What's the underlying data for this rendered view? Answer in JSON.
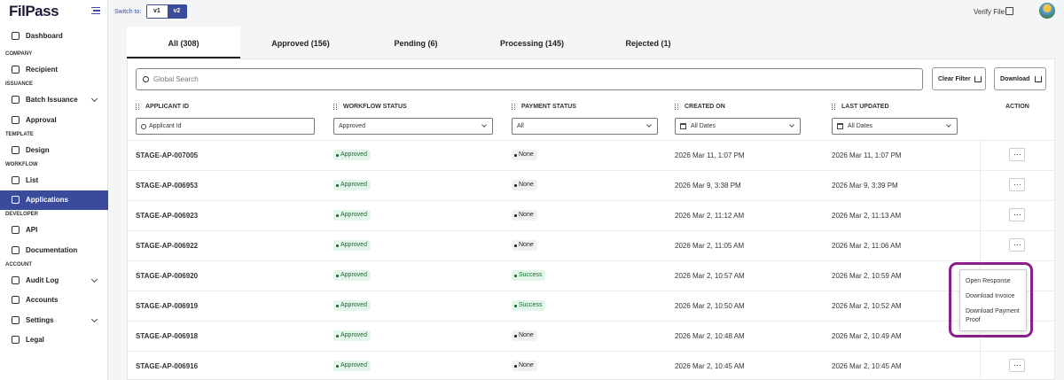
{
  "brand": "FilPass",
  "sidebar": {
    "top": "Dashboard",
    "sections": [
      {
        "title": "COMPANY",
        "items": [
          "Recipient"
        ]
      },
      {
        "title": "ISSUANCE",
        "items": [
          "Batch Issuance",
          "Approval"
        ]
      },
      {
        "title": "TEMPLATE",
        "items": [
          "Design"
        ]
      },
      {
        "title": "WORKFLOW",
        "items": [
          "List",
          "Applications"
        ]
      },
      {
        "title": "DEVELOPER",
        "items": [
          "API",
          "Documentation"
        ]
      },
      {
        "title": "ACCOUNT",
        "items": [
          "Audit Log",
          "Accounts",
          "Settings",
          "Legal"
        ]
      }
    ]
  },
  "topbar": {
    "switch_label": "Switch to:",
    "versions": [
      "v1",
      "v2"
    ],
    "verify": "Verify File"
  },
  "tabs": [
    "All (308)",
    "Approved (156)",
    "Pending (6)",
    "Processing (145)",
    "Rejected (1)"
  ],
  "toolbar": {
    "search": "Global Search",
    "clear": "Clear Filter",
    "download": "Download"
  },
  "table": {
    "columns": [
      "APPLICANT ID",
      "WORKFLOW STATUS",
      "PAYMENT STATUS",
      "CREATED ON",
      "LAST UPDATED",
      "ACTION"
    ],
    "filters": [
      "Applicant Id",
      "Approved",
      "All",
      "All Dates",
      "All Dates"
    ],
    "rows": [
      {
        "id": "STAGE-AP-007005",
        "workflow_status": "Approved",
        "payment_status": "None",
        "payment_color": "#f0f0f0",
        "created_on": "2026 Mar 11, 1:07 PM",
        "last_updated": "2026 Mar 11, 1:07 PM"
      },
      {
        "id": "STAGE-AP-006953",
        "workflow_status": "Approved",
        "payment_status": "None",
        "payment_color": "#f0f0f0",
        "created_on": "2026 Mar 9, 3:38 PM",
        "last_updated": "2026 Mar 9, 3:39 PM"
      },
      {
        "id": "STAGE-AP-006923",
        "workflow_status": "Approved",
        "payment_status": "None",
        "payment_color": "#f0f0f0",
        "created_on": "2026 Mar 2, 11:12 AM",
        "last_updated": "2026 Mar 2, 11:13 AM"
      },
      {
        "id": "STAGE-AP-006922",
        "workflow_status": "Approved",
        "payment_status": "None",
        "payment_color": "#f0f0f0",
        "created_on": "2026 Mar 2, 11:05 AM",
        "last_updated": "2026 Mar 2, 11:06 AM"
      },
      {
        "id": "STAGE-AP-006920",
        "workflow_status": "Approved",
        "payment_status": "Success",
        "payment_color": "#e2f6e9",
        "created_on": "2026 Mar 2, 10:57 AM",
        "last_updated": "2026 Mar 2, 10:59 AM"
      },
      {
        "id": "STAGE-AP-006919",
        "workflow_status": "Approved",
        "payment_status": "Success",
        "payment_color": "#e2f6e9",
        "created_on": "2026 Mar 2, 10:50 AM",
        "last_updated": "2026 Mar 2, 10:52 AM"
      },
      {
        "id": "STAGE-AP-006918",
        "workflow_status": "Approved",
        "payment_status": "None",
        "payment_color": "#f0f0f0",
        "created_on": "2026 Mar 2, 10:48 AM",
        "last_updated": "2026 Mar 2, 10:49 AM"
      },
      {
        "id": "STAGE-AP-006916",
        "workflow_status": "Approved",
        "payment_status": "None",
        "payment_color": "#f0f0f0",
        "created_on": "2026 Mar 2, 10:45 AM",
        "last_updated": "2026 Mar 2, 10:45 AM"
      }
    ]
  },
  "menu": [
    "Open Response",
    "Download Invoice",
    "Download Payment Proof"
  ]
}
